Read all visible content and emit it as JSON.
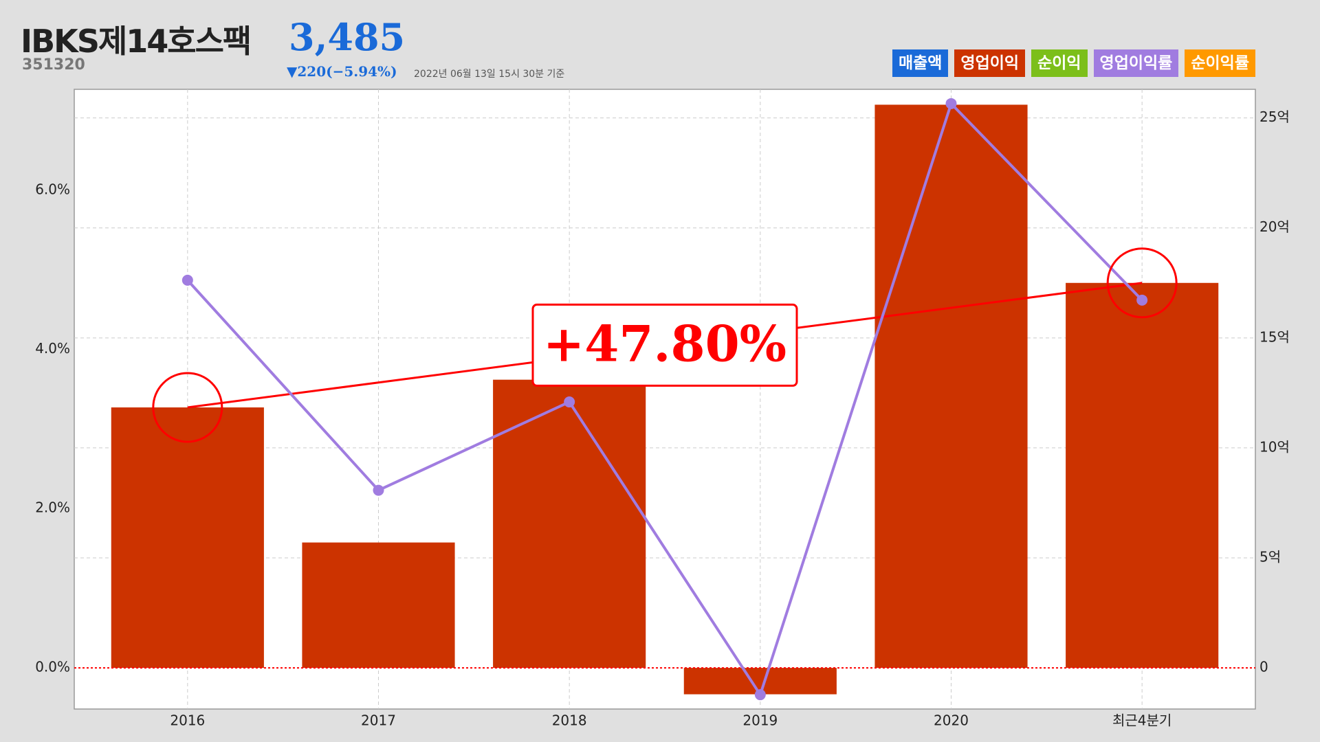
{
  "header": {
    "title": "IBKS제14호스팩",
    "price": "3,485",
    "code": "351320",
    "change": "▼220(−5.94%)",
    "date": "2022년 06월 13일 15시 30분 기준"
  },
  "legend": [
    {
      "name": "매출액",
      "color": "#1a6ad8"
    },
    {
      "name": "영업이익",
      "color": "#cc3300"
    },
    {
      "name": "순이익",
      "color": "#7cbf1a"
    },
    {
      "name": "영업이익률",
      "color": "#a07ce0"
    },
    {
      "name": "순이익률",
      "color": "#ff9900"
    }
  ],
  "chart_data": {
    "type": "bar-line",
    "categories": [
      "2016",
      "2017",
      "2018",
      "2019",
      "2020",
      "최근4분기"
    ],
    "series": [
      {
        "name": "영업이익",
        "type": "bar",
        "color": "#cc3300",
        "axis": "y2",
        "values": [
          11.84,
          5.7,
          13.1,
          -1.2,
          25.6,
          17.5
        ]
      },
      {
        "name": "영업이익률",
        "type": "line",
        "color": "#a07ce0",
        "values": [
          4.87,
          2.23,
          3.34,
          -0.34,
          7.09,
          4.62
        ]
      }
    ],
    "annotation": "+47.80%",
    "ylim": [
      -0.52,
      7.27
    ],
    "yticks": [
      {
        "value": 0,
        "label": "0.0%"
      },
      {
        "value": 2,
        "label": "2.0%"
      },
      {
        "value": 4,
        "label": "4.0%"
      },
      {
        "value": 6,
        "label": "6.0%"
      }
    ],
    "y2lim": [
      -1.87,
      26.3
    ],
    "y2ticks": [
      0,
      {
        "value": 5,
        "label": "5억"
      },
      {
        "value": 10,
        "label": "10억"
      },
      {
        "value": 15,
        "label": "15억"
      },
      {
        "value": 20,
        "label": "20억"
      },
      {
        "value": 25,
        "label": "25억"
      }
    ],
    "grid": true
  }
}
